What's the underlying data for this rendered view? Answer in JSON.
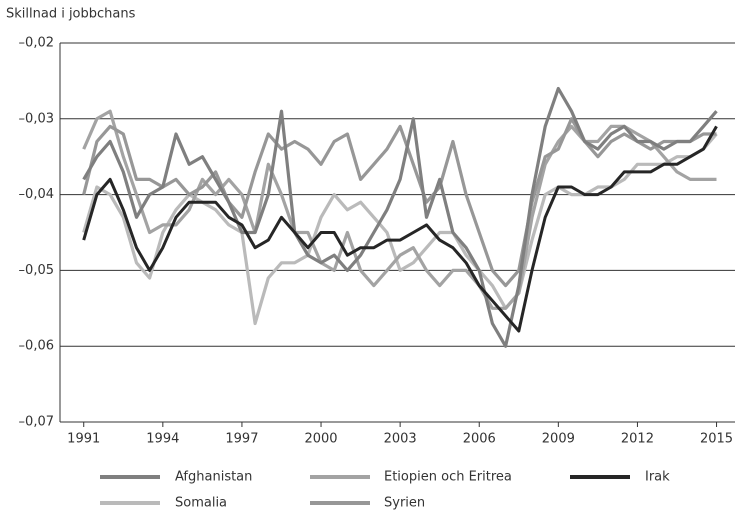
{
  "chart_data": {
    "type": "line",
    "y_axis_label": "Skillnad i jobbchans",
    "x": [
      1991,
      1991.5,
      1992,
      1992.5,
      1993,
      1993.5,
      1994,
      1994.5,
      1995,
      1995.5,
      1996,
      1996.5,
      1997,
      1997.5,
      1998,
      1998.5,
      1999,
      1999.5,
      2000,
      2000.5,
      2001,
      2001.5,
      2002,
      2002.5,
      2003,
      2003.5,
      2004,
      2004.5,
      2005,
      2005.5,
      2006,
      2006.5,
      2007,
      2007.5,
      2008,
      2008.5,
      2009,
      2009.5,
      2010,
      2010.5,
      2011,
      2011.5,
      2012,
      2012.5,
      2013,
      2013.5,
      2014,
      2014.5,
      2015
    ],
    "xlim": [
      1990.1,
      2015.7
    ],
    "xticks": [
      1991,
      1994,
      1997,
      2000,
      2003,
      2006,
      2009,
      2012,
      2015
    ],
    "ylim": [
      -0.07,
      -0.02
    ],
    "yticks": [
      {
        "value": -0.07,
        "label": "–0,07"
      },
      {
        "value": -0.06,
        "label": "–0,06"
      },
      {
        "value": -0.05,
        "label": "–0,05"
      },
      {
        "value": -0.04,
        "label": "–0,04"
      },
      {
        "value": -0.03,
        "label": "–0,03"
      },
      {
        "value": -0.02,
        "label": "–0,02"
      }
    ],
    "grid": true,
    "legend_position": "bottom",
    "series": [
      {
        "name": "Afghanistan",
        "color": "#7f7f7f",
        "values": [
          -0.038,
          -0.035,
          -0.033,
          -0.037,
          -0.043,
          -0.04,
          -0.039,
          -0.032,
          -0.036,
          -0.035,
          -0.038,
          -0.041,
          -0.045,
          -0.045,
          -0.04,
          -0.029,
          -0.045,
          -0.048,
          -0.049,
          -0.048,
          -0.05,
          -0.048,
          -0.045,
          -0.042,
          -0.038,
          -0.03,
          -0.043,
          -0.038,
          -0.045,
          -0.047,
          -0.05,
          -0.057,
          -0.06,
          -0.052,
          -0.04,
          -0.031,
          -0.026,
          -0.029,
          -0.033,
          -0.034,
          -0.032,
          -0.031,
          -0.033,
          -0.033,
          -0.034,
          -0.033,
          -0.033,
          -0.031,
          -0.029
        ]
      },
      {
        "name": "Etiopien och Eritrea",
        "color": "#a3a3a3",
        "values": [
          -0.034,
          -0.03,
          -0.029,
          -0.035,
          -0.04,
          -0.045,
          -0.044,
          -0.044,
          -0.042,
          -0.038,
          -0.04,
          -0.038,
          -0.04,
          -0.045,
          -0.036,
          -0.04,
          -0.045,
          -0.045,
          -0.049,
          -0.05,
          -0.045,
          -0.05,
          -0.052,
          -0.05,
          -0.048,
          -0.047,
          -0.05,
          -0.052,
          -0.05,
          -0.05,
          -0.052,
          -0.055,
          -0.055,
          -0.053,
          -0.043,
          -0.036,
          -0.033,
          -0.031,
          -0.033,
          -0.033,
          -0.031,
          -0.031,
          -0.032,
          -0.033,
          -0.035,
          -0.037,
          -0.038,
          -0.038,
          -0.038
        ]
      },
      {
        "name": "Irak",
        "color": "#262626",
        "values": [
          -0.046,
          -0.04,
          -0.038,
          -0.042,
          -0.047,
          -0.05,
          -0.047,
          -0.043,
          -0.041,
          -0.041,
          -0.041,
          -0.043,
          -0.044,
          -0.047,
          -0.046,
          -0.043,
          -0.045,
          -0.047,
          -0.045,
          -0.045,
          -0.048,
          -0.047,
          -0.047,
          -0.046,
          -0.046,
          -0.045,
          -0.044,
          -0.046,
          -0.047,
          -0.049,
          -0.052,
          -0.054,
          -0.056,
          -0.058,
          -0.05,
          -0.043,
          -0.039,
          -0.039,
          -0.04,
          -0.04,
          -0.039,
          -0.037,
          -0.037,
          -0.037,
          -0.036,
          -0.036,
          -0.035,
          -0.034,
          -0.031
        ]
      },
      {
        "name": "Somalia",
        "color": "#bababa",
        "values": [
          -0.045,
          -0.039,
          -0.04,
          -0.043,
          -0.049,
          -0.051,
          -0.045,
          -0.042,
          -0.04,
          -0.041,
          -0.042,
          -0.044,
          -0.045,
          -0.057,
          -0.051,
          -0.049,
          -0.049,
          -0.048,
          -0.043,
          -0.04,
          -0.042,
          -0.041,
          -0.043,
          -0.045,
          -0.05,
          -0.049,
          -0.047,
          -0.045,
          -0.045,
          -0.048,
          -0.05,
          -0.052,
          -0.055,
          -0.053,
          -0.046,
          -0.04,
          -0.039,
          -0.04,
          -0.04,
          -0.039,
          -0.039,
          -0.038,
          -0.036,
          -0.036,
          -0.036,
          -0.035,
          -0.035,
          -0.034,
          -0.032
        ]
      },
      {
        "name": "Syrien",
        "color": "#979797",
        "values": [
          -0.04,
          -0.033,
          -0.031,
          -0.032,
          -0.038,
          -0.038,
          -0.039,
          -0.038,
          -0.04,
          -0.039,
          -0.037,
          -0.041,
          -0.043,
          -0.037,
          -0.032,
          -0.034,
          -0.033,
          -0.034,
          -0.036,
          -0.033,
          -0.032,
          -0.038,
          -0.036,
          -0.034,
          -0.031,
          -0.036,
          -0.041,
          -0.039,
          -0.033,
          -0.04,
          -0.045,
          -0.05,
          -0.052,
          -0.05,
          -0.041,
          -0.035,
          -0.034,
          -0.03,
          -0.033,
          -0.035,
          -0.033,
          -0.032,
          -0.033,
          -0.034,
          -0.033,
          -0.033,
          -0.033,
          -0.032,
          -0.032
        ]
      }
    ]
  }
}
